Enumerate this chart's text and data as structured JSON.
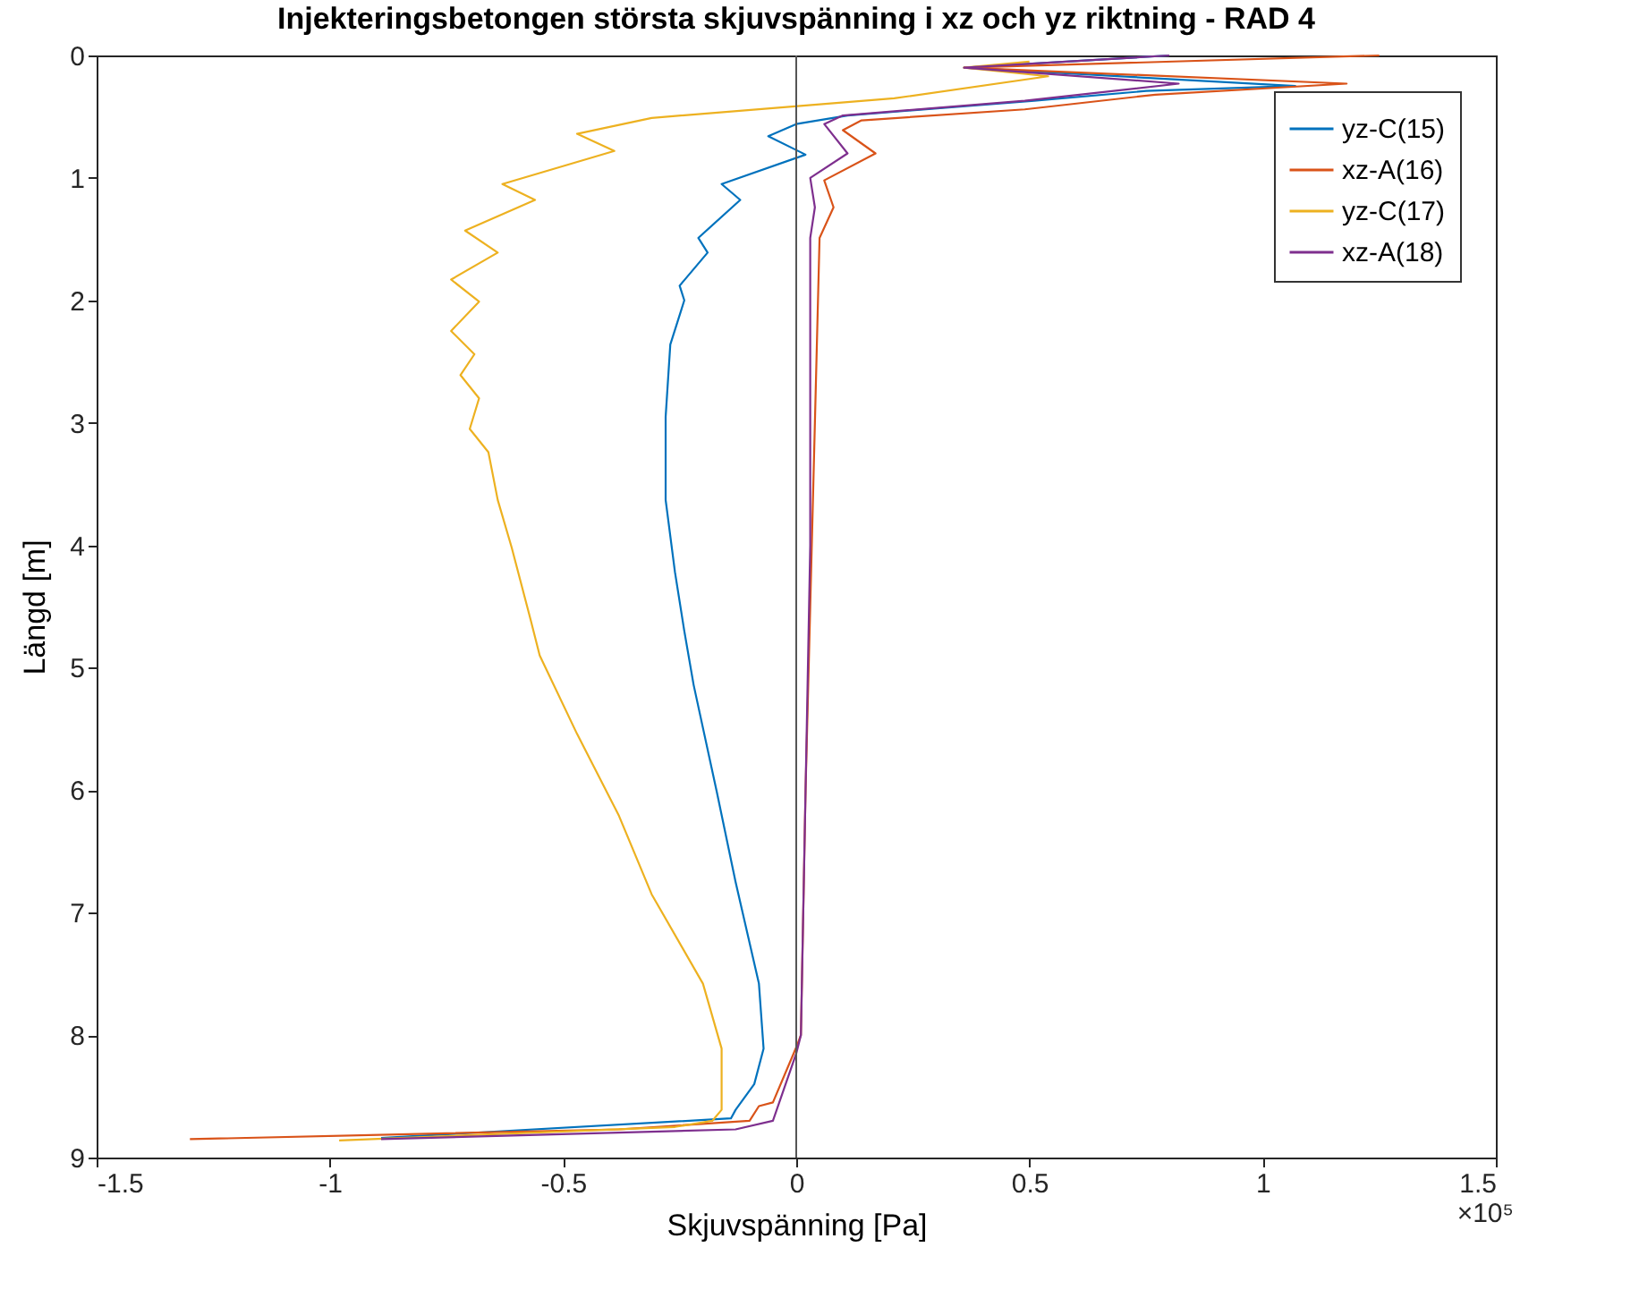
{
  "chart_data": {
    "type": "line",
    "title": "Injekteringsbetongen största skjuvspänning i xz och yz riktning - RAD 4",
    "xlabel": "Skjuvspänning [Pa]",
    "ylabel": "Längd [m]",
    "annotations": [
      "×10⁵"
    ],
    "xlim": [
      -1.5,
      1.5
    ],
    "xticks": [
      -1.5,
      -1,
      -0.5,
      0,
      0.5,
      1,
      1.5
    ],
    "ylim": [
      9,
      0
    ],
    "yticks": [
      0,
      1,
      2,
      3,
      4,
      5,
      6,
      7,
      8,
      9
    ],
    "grid": false,
    "legend": "top right",
    "line_style": "solid",
    "marker": "none",
    "ref_lines": [
      {
        "axis": "x",
        "value": 0,
        "color": "#555555"
      }
    ],
    "series": [
      {
        "name": "yz-C(15)",
        "color": "#0072bd",
        "x": [
          0.8,
          0.36,
          1.07,
          0.75,
          0.51,
          0.11,
          0,
          -0.06,
          0.02,
          -0.16,
          -0.12,
          -0.21,
          -0.19,
          -0.25,
          -0.24,
          -0.27,
          -0.28,
          -0.28,
          -0.26,
          -0.24,
          -0.22,
          -0.17,
          -0.13,
          -0.08,
          -0.07,
          -0.09,
          -0.13,
          -0.14,
          -0.89
        ],
        "values": [
          0,
          0.1,
          0.25,
          0.29,
          0.37,
          0.49,
          0.56,
          0.66,
          0.81,
          1.05,
          1.18,
          1.49,
          1.61,
          1.88,
          2.0,
          2.36,
          2.95,
          3.63,
          4.22,
          4.7,
          5.14,
          6.02,
          6.75,
          7.58,
          8.11,
          8.4,
          8.61,
          8.68,
          8.84
        ]
      },
      {
        "name": "xz-A(16)",
        "color": "#d95319",
        "x": [
          1.25,
          0.36,
          1.18,
          0.77,
          0.49,
          0.14,
          0.1,
          0.17,
          0.06,
          0.08,
          0.05,
          0.04,
          0.03,
          0.02,
          0.01,
          0,
          -0.05,
          -0.08,
          -0.1,
          -0.38,
          -1.3
        ],
        "values": [
          0,
          0.1,
          0.23,
          0.32,
          0.44,
          0.53,
          0.61,
          0.8,
          1.02,
          1.24,
          1.49,
          3.0,
          4.5,
          6.0,
          8.0,
          8.1,
          8.55,
          8.58,
          8.7,
          8.77,
          8.85
        ]
      },
      {
        "name": "yz-C(17)",
        "color": "#edb120",
        "x": [
          0.5,
          0.36,
          0.54,
          0.21,
          -0.31,
          -0.47,
          -0.39,
          -0.63,
          -0.56,
          -0.71,
          -0.64,
          -0.74,
          -0.68,
          -0.74,
          -0.69,
          -0.72,
          -0.68,
          -0.7,
          -0.66,
          -0.64,
          -0.61,
          -0.57,
          -0.55,
          -0.47,
          -0.38,
          -0.31,
          -0.2,
          -0.16,
          -0.16,
          -0.18,
          -0.26,
          -0.98
        ],
        "values": [
          0.05,
          0.1,
          0.17,
          0.35,
          0.51,
          0.64,
          0.78,
          1.05,
          1.18,
          1.43,
          1.61,
          1.83,
          2.01,
          2.25,
          2.44,
          2.61,
          2.8,
          3.05,
          3.24,
          3.63,
          4.02,
          4.6,
          4.9,
          5.54,
          6.21,
          6.85,
          7.58,
          8.11,
          8.61,
          8.7,
          8.75,
          8.86
        ]
      },
      {
        "name": "xz-A(18)",
        "color": "#7e2f8e",
        "x": [
          0.8,
          0.36,
          0.82,
          0.49,
          0.1,
          0.06,
          0.11,
          0.03,
          0.04,
          0.03,
          0.03,
          0.02,
          0.01,
          0,
          -0.05,
          -0.13,
          -0.89
        ],
        "values": [
          0,
          0.1,
          0.23,
          0.37,
          0.49,
          0.56,
          0.8,
          1.0,
          1.24,
          1.49,
          4.0,
          6.0,
          8.0,
          8.15,
          8.7,
          8.77,
          8.85
        ]
      }
    ]
  }
}
